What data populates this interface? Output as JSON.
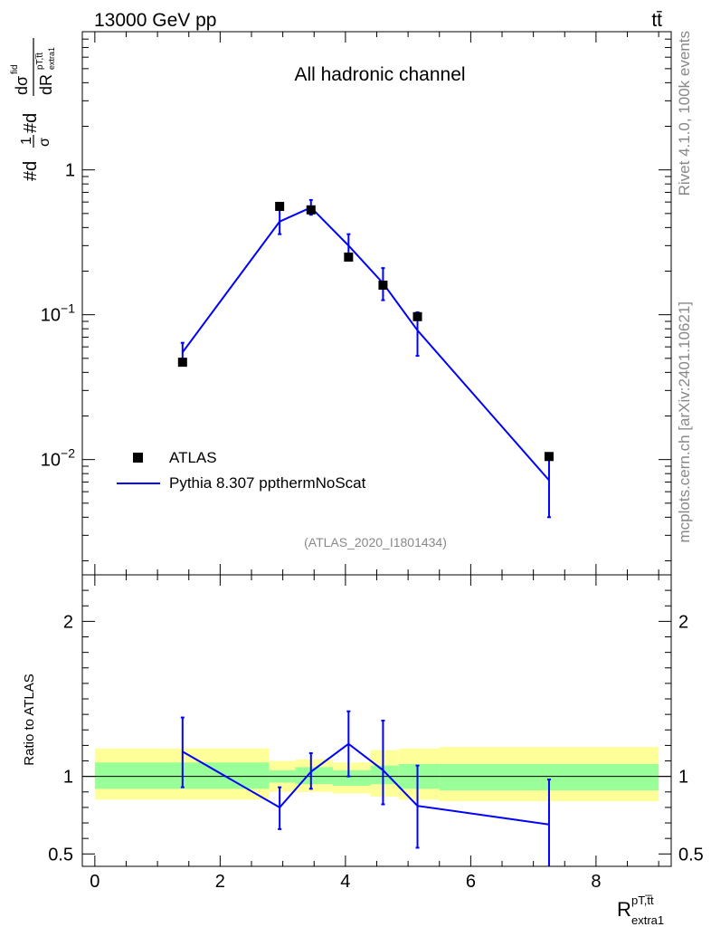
{
  "header": {
    "energy_label": "13000 GeV pp",
    "process_label": "tt̄"
  },
  "side_labels": {
    "rivet": "Rivet 4.1.0,  100k events",
    "mcplots": "mcplots.cern.ch [arXiv:2401.10621]"
  },
  "colors": {
    "data": "#000000",
    "mc": "#0000ff",
    "band_inner": "#99ff99",
    "band_outer": "#ffff99"
  },
  "chart_data": [
    {
      "type": "scatter",
      "title": "All hadronic channel",
      "ylabel": "#dσ/#dR^{pT,t̅t}_{extra1}",
      "ylabel_main": "#d",
      "ylabel_frac_num": "1",
      "ylabel_frac_den": "σ",
      "ylabel_mid": "#d",
      "ylabel_d_num": "dσ",
      "ylabel_fid": "fid",
      "ylabel_d_den": "dR",
      "ylabel_sup": "pT,t̅t",
      "ylabel_sub": "extra1",
      "yscale": "log",
      "ylim": [
        0.0016,
        9
      ],
      "xlim": [
        -0.2,
        9.2
      ],
      "yticks": [
        {
          "value": 1,
          "label": "1"
        },
        {
          "value": 0.1,
          "label": "10",
          "exp": "−1"
        },
        {
          "value": 0.01,
          "label": "10",
          "exp": "−2"
        }
      ],
      "legend": {
        "position": "bottom-left",
        "entries": [
          {
            "name": "ATLAS",
            "marker": "square"
          },
          {
            "name": "Pythia 8.307 ppthermNoScat",
            "marker": "line"
          }
        ]
      },
      "watermark": "(ATLAS_2020_I1801434)",
      "series": [
        {
          "name": "ATLAS",
          "x": [
            1.4,
            2.95,
            3.45,
            4.05,
            4.6,
            5.15,
            7.25
          ],
          "values": [
            0.047,
            0.56,
            0.53,
            0.25,
            0.16,
            0.097,
            0.0105
          ]
        },
        {
          "name": "Pythia 8.307 ppthermNoScat",
          "x": [
            1.4,
            2.95,
            3.45,
            4.05,
            4.6,
            5.15,
            7.25
          ],
          "values": [
            0.055,
            0.44,
            0.55,
            0.3,
            0.165,
            0.078,
            0.0072
          ],
          "err_low": [
            0.046,
            0.36,
            0.49,
            0.24,
            0.126,
            0.052,
            0.004
          ],
          "err_high": [
            0.064,
            0.53,
            0.62,
            0.36,
            0.21,
            0.104,
            0.0105
          ]
        }
      ]
    },
    {
      "type": "line",
      "ylabel": "Ratio to ATLAS",
      "xlabel": "R",
      "xlabel_sup": "pT,t̅t",
      "xlabel_sub": "extra1",
      "ylim": [
        0.42,
        2.3
      ],
      "xlim": [
        -0.2,
        9.2
      ],
      "yticks": [
        {
          "value": 2,
          "label": "2"
        },
        {
          "value": 1,
          "label": "1"
        },
        {
          "value": 0.5,
          "label": "0.5"
        }
      ],
      "xticks": [
        {
          "value": 0,
          "label": "0"
        },
        {
          "value": 2,
          "label": "2"
        },
        {
          "value": 4,
          "label": "4"
        },
        {
          "value": 6,
          "label": "6"
        },
        {
          "value": 8,
          "label": "8"
        }
      ],
      "reference": 1,
      "bands": [
        {
          "x0": 0.0,
          "x1": 2.78,
          "inner": [
            0.92,
            1.09
          ],
          "outer": [
            0.85,
            1.18
          ]
        },
        {
          "x0": 2.78,
          "x1": 3.2,
          "inner": [
            0.96,
            1.04
          ],
          "outer": [
            0.9,
            1.1
          ]
        },
        {
          "x0": 3.2,
          "x1": 3.8,
          "inner": [
            0.95,
            1.06
          ],
          "outer": [
            0.9,
            1.11
          ]
        },
        {
          "x0": 3.8,
          "x1": 4.4,
          "inner": [
            0.94,
            1.04
          ],
          "outer": [
            0.89,
            1.09
          ]
        },
        {
          "x0": 4.4,
          "x1": 4.85,
          "inner": [
            0.95,
            1.07
          ],
          "outer": [
            0.87,
            1.17
          ]
        },
        {
          "x0": 4.85,
          "x1": 5.5,
          "inner": [
            0.92,
            1.08
          ],
          "outer": [
            0.85,
            1.18
          ]
        },
        {
          "x0": 5.5,
          "x1": 9.0,
          "inner": [
            0.91,
            1.08
          ],
          "outer": [
            0.84,
            1.19
          ]
        }
      ],
      "series": [
        {
          "name": "Pythia 8.307 ppthermNoScat",
          "x": [
            1.4,
            2.95,
            3.45,
            4.05,
            4.6,
            5.15,
            7.25
          ],
          "values": [
            1.16,
            0.8,
            1.03,
            1.21,
            1.04,
            0.81,
            0.69
          ],
          "err_low": [
            0.93,
            0.66,
            0.92,
            1.0,
            0.82,
            0.54,
            0.4
          ],
          "err_high": [
            1.38,
            0.93,
            1.15,
            1.42,
            1.36,
            1.07,
            0.98
          ]
        }
      ]
    }
  ]
}
